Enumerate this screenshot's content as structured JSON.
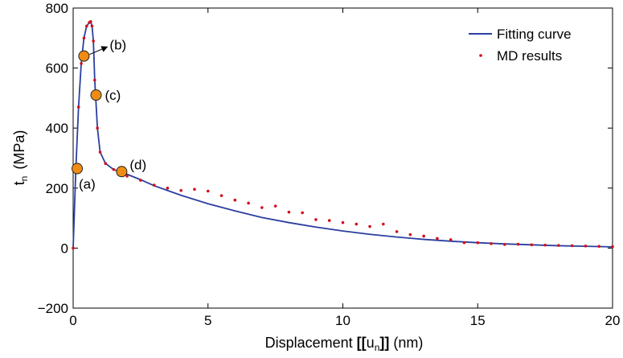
{
  "chart_data": {
    "type": "line",
    "title": "",
    "xlabel": {
      "prefix": "Displacement ",
      "u": "u",
      "n": "n",
      "suffix": " (nm)"
    },
    "ylabel": {
      "t": "t",
      "n": "n",
      "unit": "(MPa)"
    },
    "xlim": [
      0,
      20
    ],
    "ylim": [
      -200,
      800
    ],
    "xticks": [
      0,
      5,
      10,
      15,
      20
    ],
    "yticks": [
      -200,
      0,
      200,
      400,
      600,
      800
    ],
    "ytick_labels": [
      "−200",
      "0",
      "200",
      "400",
      "600",
      "800"
    ],
    "grid": false,
    "legend_position": "top-right",
    "colors": {
      "fit": "#2b3fa0",
      "md": "#d0101a",
      "marker_fill": "#f08c14",
      "marker_edge": "#222222"
    },
    "series": [
      {
        "name": "Fitting curve",
        "style": "line",
        "x": [
          0,
          0.1,
          0.2,
          0.3,
          0.4,
          0.5,
          0.6,
          0.65,
          0.7,
          0.75,
          0.8,
          0.9,
          1.0,
          1.2,
          1.5,
          1.8,
          2,
          2.5,
          3,
          3.5,
          4,
          5,
          6,
          7,
          8,
          9,
          10,
          11,
          12,
          13,
          14,
          15,
          16,
          17,
          18,
          19,
          20
        ],
        "y": [
          0,
          265,
          470,
          615,
          700,
          740,
          752,
          755,
          740,
          690,
          560,
          400,
          320,
          282,
          262,
          252,
          246,
          228,
          208,
          192,
          176,
          148,
          124,
          102,
          85,
          70,
          57,
          46,
          37,
          29,
          23,
          18,
          14,
          11,
          8,
          6,
          4
        ]
      },
      {
        "name": "MD results",
        "style": "points",
        "x": [
          0,
          0.1,
          0.2,
          0.3,
          0.4,
          0.5,
          0.6,
          0.65,
          0.7,
          0.75,
          0.8,
          0.9,
          1.0,
          1.2,
          1.5,
          1.8,
          2,
          2.5,
          3,
          3.5,
          4,
          4.5,
          5,
          5.5,
          6,
          6.5,
          7,
          7.5,
          8,
          8.5,
          9,
          9.5,
          10,
          10.5,
          11,
          11.5,
          12,
          12.5,
          13,
          13.5,
          14,
          14.5,
          15,
          15.5,
          16,
          16.5,
          17,
          17.5,
          18,
          18.5,
          19,
          19.5,
          20
        ],
        "y": [
          0,
          265,
          470,
          615,
          700,
          740,
          752,
          755,
          740,
          690,
          560,
          400,
          320,
          282,
          262,
          252,
          240,
          226,
          210,
          200,
          192,
          196,
          190,
          175,
          160,
          150,
          135,
          140,
          120,
          118,
          95,
          92,
          85,
          80,
          72,
          80,
          55,
          45,
          40,
          32,
          28,
          18,
          18,
          15,
          12,
          13,
          11,
          10,
          9,
          8,
          7,
          6,
          5
        ]
      }
    ],
    "annotations": [
      {
        "label": "(a)",
        "x": 0.15,
        "y": 265
      },
      {
        "label": "(b)",
        "x": 0.4,
        "y": 640
      },
      {
        "label": "(c)",
        "x": 0.85,
        "y": 510
      },
      {
        "label": "(d)",
        "x": 1.8,
        "y": 255
      }
    ]
  }
}
